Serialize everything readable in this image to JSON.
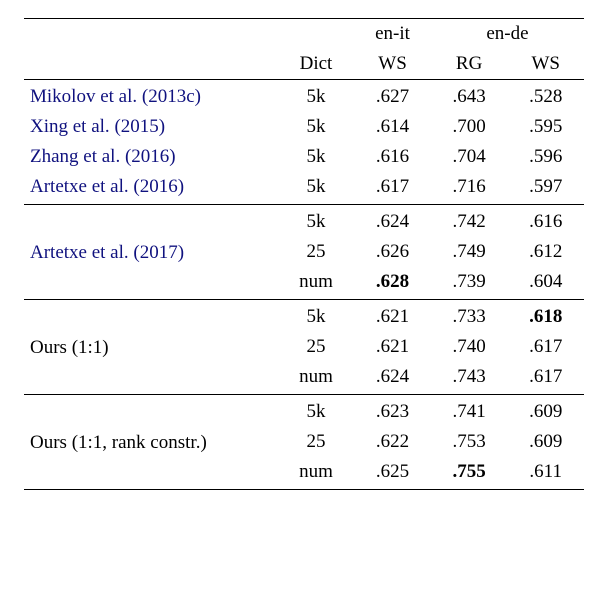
{
  "headers": {
    "dict": "Dict",
    "en_it": "en-it",
    "en_de": "en-de",
    "ws": "WS",
    "rg": "RG"
  },
  "methods": {
    "mikolov": {
      "author": "Mikolov et al.",
      "year": "2013c"
    },
    "xing": {
      "author": "Xing et al.",
      "year": "2015"
    },
    "zhang": {
      "author": "Zhang et al.",
      "year": "2016"
    },
    "artetxe16": {
      "author": "Artetxe et al.",
      "year": "2016"
    },
    "artetxe17": {
      "author": "Artetxe et al.",
      "year": "2017"
    },
    "ours1": {
      "label": "Ours (1:1)"
    },
    "ours2": {
      "label": "Ours (1:1, rank constr.)"
    }
  },
  "dicts": {
    "k5": "5k",
    "d25": "25",
    "num": "num"
  },
  "rows": {
    "mikolov": {
      "dict": "5k",
      "enit_ws": ".627",
      "ende_rg": ".643",
      "ende_ws": ".528"
    },
    "xing": {
      "dict": "5k",
      "enit_ws": ".614",
      "ende_rg": ".700",
      "ende_ws": ".595"
    },
    "zhang": {
      "dict": "5k",
      "enit_ws": ".616",
      "ende_rg": ".704",
      "ende_ws": ".596"
    },
    "artetxe16": {
      "dict": "5k",
      "enit_ws": ".617",
      "ende_rg": ".716",
      "ende_ws": ".597"
    },
    "artetxe17_5k": {
      "dict": "5k",
      "enit_ws": ".624",
      "ende_rg": ".742",
      "ende_ws": ".616"
    },
    "artetxe17_25": {
      "dict": "25",
      "enit_ws": ".626",
      "ende_rg": ".749",
      "ende_ws": ".612"
    },
    "artetxe17_num": {
      "dict": "num",
      "enit_ws": ".628",
      "ende_rg": ".739",
      "ende_ws": ".604"
    },
    "ours1_5k": {
      "dict": "5k",
      "enit_ws": ".621",
      "ende_rg": ".733",
      "ende_ws": ".618"
    },
    "ours1_25": {
      "dict": "25",
      "enit_ws": ".621",
      "ende_rg": ".740",
      "ende_ws": ".617"
    },
    "ours1_num": {
      "dict": "num",
      "enit_ws": ".624",
      "ende_rg": ".743",
      "ende_ws": ".617"
    },
    "ours2_5k": {
      "dict": "5k",
      "enit_ws": ".623",
      "ende_rg": ".741",
      "ende_ws": ".609"
    },
    "ours2_25": {
      "dict": "25",
      "enit_ws": ".622",
      "ende_rg": ".753",
      "ende_ws": ".609"
    },
    "ours2_num": {
      "dict": "num",
      "enit_ws": ".625",
      "ende_rg": ".755",
      "ende_ws": ".611"
    }
  }
}
